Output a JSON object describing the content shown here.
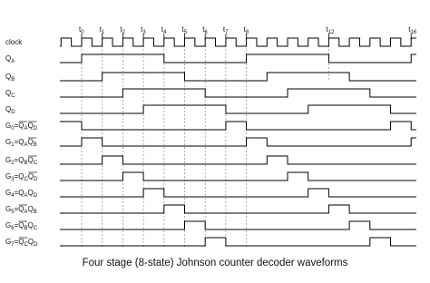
{
  "time_labels": [
    {
      "name": "t",
      "sub": "0"
    },
    {
      "name": "t",
      "sub": "1"
    },
    {
      "name": "t",
      "sub": "2"
    },
    {
      "name": "t",
      "sub": "3"
    },
    {
      "name": "t",
      "sub": "4"
    },
    {
      "name": "t",
      "sub": "5"
    },
    {
      "name": "t",
      "sub": "6"
    },
    {
      "name": "t",
      "sub": "7"
    },
    {
      "name": "t",
      "sub": "8"
    },
    {
      "name": "t",
      "sub": "12"
    },
    {
      "name": "t",
      "sub": "16"
    }
  ],
  "signals": [
    {
      "name": "clock"
    },
    {
      "name": "Q",
      "sub": "A"
    },
    {
      "name": "Q",
      "sub": "B"
    },
    {
      "name": "Q",
      "sub": "C"
    },
    {
      "name": "Q",
      "sub": "D"
    },
    {
      "name": "G",
      "sub": "0",
      "eq": "=",
      "terms": [
        {
          "name": "Q",
          "sub": "A",
          "bar": true
        },
        {
          "name": "Q",
          "sub": "D",
          "bar": true
        }
      ]
    },
    {
      "name": "G",
      "sub": "1",
      "eq": "=",
      "terms": [
        {
          "name": "Q",
          "sub": "A",
          "bar": false
        },
        {
          "name": "Q",
          "sub": "B",
          "bar": true
        }
      ]
    },
    {
      "name": "G",
      "sub": "2",
      "eq": "=",
      "terms": [
        {
          "name": "Q",
          "sub": "B",
          "bar": false
        },
        {
          "name": "Q",
          "sub": "C",
          "bar": true
        }
      ]
    },
    {
      "name": "G",
      "sub": "3",
      "eq": "=",
      "terms": [
        {
          "name": "Q",
          "sub": "C",
          "bar": false
        },
        {
          "name": "Q",
          "sub": "D",
          "bar": true
        }
      ]
    },
    {
      "name": "G",
      "sub": "4",
      "eq": "=",
      "terms": [
        {
          "name": "Q",
          "sub": "A",
          "bar": false
        },
        {
          "name": "Q",
          "sub": "D",
          "bar": false
        }
      ]
    },
    {
      "name": "G",
      "sub": "5",
      "eq": "=",
      "terms": [
        {
          "name": "Q",
          "sub": "A",
          "bar": true
        },
        {
          "name": "Q",
          "sub": "B",
          "bar": false
        }
      ]
    },
    {
      "name": "G",
      "sub": "6",
      "eq": "=",
      "terms": [
        {
          "name": "Q",
          "sub": "B",
          "bar": true
        },
        {
          "name": "Q",
          "sub": "C",
          "bar": false
        }
      ]
    },
    {
      "name": "G",
      "sub": "7",
      "eq": "=",
      "terms": [
        {
          "name": "Q",
          "sub": "C",
          "bar": true
        },
        {
          "name": "Q",
          "sub": "D",
          "bar": false
        }
      ]
    }
  ],
  "caption": "Four stage (8-state) Johnson counter decoder waveforms"
}
